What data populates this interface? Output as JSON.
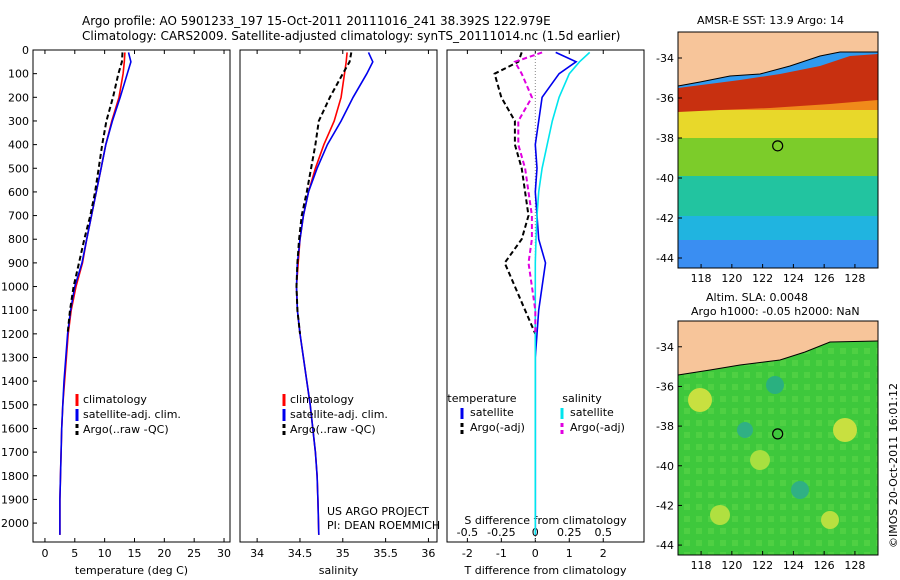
{
  "header": {
    "title_line1": "Argo profile: AO 5901233_197 15-Oct-2011 20111016_241 38.392S 122.979E",
    "title_line2": "Climatology: CARS2009. Satellite-adjusted climatology: synTS_20111014.nc (1.5d earlier)"
  },
  "map_titles": {
    "sst": "AMSR-E SST: 13.9 Argo: 14",
    "sla_line1": "Altim. SLA: 0.0048",
    "sla_line2": "Argo h1000: -0.05 h2000: NaN"
  },
  "watermark": "©IMOS 20-Oct-2011 16:01:12",
  "colors": {
    "climatology": "#ff0000",
    "satellite": "#0000ee",
    "argo": "#000000",
    "salinity_satellite": "#00e5ee",
    "salinity_argo": "#e000e0",
    "land": "#f7c59a"
  },
  "chart_data": [
    {
      "type": "line",
      "id": "temperature",
      "xlabel": "temperature (deg C)",
      "ylabel": "",
      "xlim": [
        -2,
        31
      ],
      "ylim": [
        2080,
        0
      ],
      "xticks": [
        0,
        5,
        10,
        15,
        20,
        25,
        30
      ],
      "yticks": [
        0,
        100,
        200,
        300,
        400,
        500,
        600,
        700,
        800,
        900,
        1000,
        1100,
        1200,
        1300,
        1400,
        1500,
        1600,
        1700,
        1800,
        1900,
        2000
      ],
      "legend": [
        "climatology",
        "satellite-adj. clim.",
        "Argo(..raw -QC)"
      ],
      "series": [
        {
          "name": "climatology",
          "style": "solid",
          "color": "#ff0000",
          "x": [
            13.4,
            13.3,
            13.1,
            12.4,
            11.2,
            10.2,
            9.4,
            8.6,
            7.8,
            7.0,
            6.3,
            5.2,
            4.4,
            3.9,
            3.6,
            3.3,
            3.0,
            2.8,
            2.7,
            2.6,
            2.5,
            2.5
          ],
          "y": [
            10,
            50,
            100,
            200,
            300,
            400,
            500,
            600,
            700,
            800,
            900,
            1000,
            1100,
            1200,
            1300,
            1400,
            1500,
            1600,
            1700,
            1800,
            1900,
            2050
          ]
        },
        {
          "name": "satellite-adj. clim.",
          "style": "solid",
          "color": "#0000ee",
          "x": [
            14.0,
            14.4,
            13.8,
            12.6,
            11.3,
            10.2,
            9.4,
            8.6,
            7.8,
            7.0,
            6.2,
            5.0,
            4.3,
            3.8,
            3.5,
            3.2,
            3.0,
            2.8,
            2.7,
            2.6,
            2.5,
            2.5
          ],
          "y": [
            10,
            50,
            100,
            200,
            300,
            400,
            500,
            600,
            700,
            800,
            900,
            1000,
            1100,
            1200,
            1300,
            1400,
            1500,
            1600,
            1700,
            1800,
            1900,
            2050
          ]
        },
        {
          "name": "Argo(..raw -QC)",
          "style": "dashed",
          "color": "#000000",
          "x": [
            13.0,
            12.9,
            12.3,
            11.4,
            10.3,
            9.6,
            9.0,
            8.4,
            7.6,
            6.6,
            5.7,
            4.8,
            4.2,
            3.8
          ],
          "y": [
            10,
            50,
            100,
            200,
            300,
            400,
            500,
            600,
            700,
            800,
            900,
            1000,
            1100,
            1200
          ]
        }
      ]
    },
    {
      "type": "line",
      "id": "salinity",
      "xlabel": "salinity",
      "ylabel": "",
      "xlim": [
        33.8,
        36.1
      ],
      "ylim": [
        2080,
        0
      ],
      "xticks": [
        34,
        34.5,
        35,
        35.5,
        36
      ],
      "legend": [
        "climatology",
        "satellite-adj. clim.",
        "Argo(..raw -QC)"
      ],
      "annotations": [
        "US ARGO PROJECT",
        "PI: DEAN ROEMMICH"
      ],
      "series": [
        {
          "name": "climatology",
          "style": "solid",
          "color": "#ff0000",
          "x": [
            35.05,
            35.04,
            35.02,
            34.98,
            34.9,
            34.78,
            34.68,
            34.6,
            34.54,
            34.5,
            34.48,
            34.46,
            34.47,
            34.5,
            34.54,
            34.58,
            34.62,
            34.65,
            34.68,
            34.7,
            34.71,
            34.72
          ],
          "y": [
            10,
            50,
            100,
            200,
            300,
            400,
            500,
            600,
            700,
            800,
            900,
            1000,
            1100,
            1200,
            1300,
            1400,
            1500,
            1600,
            1700,
            1800,
            1900,
            2050
          ]
        },
        {
          "name": "satellite-adj. clim.",
          "style": "solid",
          "color": "#0000ee",
          "x": [
            35.3,
            35.35,
            35.28,
            35.12,
            34.98,
            34.82,
            34.7,
            34.6,
            34.54,
            34.5,
            34.47,
            34.46,
            34.47,
            34.5,
            34.54,
            34.58,
            34.62,
            34.65,
            34.68,
            34.7,
            34.71,
            34.72
          ],
          "y": [
            10,
            50,
            100,
            200,
            300,
            400,
            500,
            600,
            700,
            800,
            900,
            1000,
            1100,
            1200,
            1300,
            1400,
            1500,
            1600,
            1700,
            1800,
            1900,
            2050
          ]
        },
        {
          "name": "Argo(..raw -QC)",
          "style": "dashed",
          "color": "#000000",
          "x": [
            35.1,
            35.08,
            35.0,
            34.85,
            34.72,
            34.68,
            34.63,
            34.58,
            34.52,
            34.49,
            34.47,
            34.46,
            34.47,
            34.5
          ],
          "y": [
            10,
            50,
            100,
            200,
            300,
            400,
            500,
            600,
            700,
            800,
            900,
            1000,
            1100,
            1200
          ]
        }
      ]
    },
    {
      "type": "line",
      "id": "difference",
      "xlabel": "T difference from climatology",
      "xlabel_top": "S difference from climatology",
      "ylabel": "",
      "xlim": [
        -2.6,
        3.2
      ],
      "ylim": [
        2080,
        0
      ],
      "xticks": [
        -2,
        -1,
        0,
        1,
        2
      ],
      "xticks_s": [
        "-0.5",
        "-0.25",
        "0",
        "0.25",
        "0.5"
      ],
      "xticks_s_positions": [
        -2,
        -1,
        0,
        1,
        2
      ],
      "legend_groups": {
        "temperature": [
          "satellite",
          "Argo(-adj)"
        ],
        "salinity": [
          "satellite",
          "Argo(-adj)"
        ]
      },
      "series": [
        {
          "name": "temperature satellite",
          "style": "solid",
          "color": "#0000ee",
          "x": [
            0.6,
            1.2,
            0.7,
            0.2,
            0.1,
            0.0,
            0.05,
            0.0,
            0.05,
            0.1,
            0.3,
            0.2,
            0.1,
            0.05,
            0.0,
            0.0,
            0.0,
            0.0,
            0.0,
            0.0,
            0.0
          ],
          "y": [
            10,
            50,
            100,
            200,
            300,
            400,
            500,
            600,
            700,
            800,
            900,
            1000,
            1100,
            1200,
            1300,
            1400,
            1500,
            1600,
            1700,
            1800,
            2050
          ]
        },
        {
          "name": "temperature Argo(-adj)",
          "style": "dashed",
          "color": "#000000",
          "x": [
            -0.4,
            -0.5,
            -1.2,
            -1.0,
            -0.6,
            -0.6,
            -0.4,
            -0.3,
            -0.2,
            -0.4,
            -0.9,
            -0.6,
            -0.3,
            0.0
          ],
          "y": [
            10,
            50,
            100,
            200,
            300,
            400,
            500,
            600,
            700,
            800,
            900,
            1000,
            1100,
            1200
          ]
        },
        {
          "name": "salinity satellite",
          "style": "solid",
          "color": "#00e5ee",
          "x": [
            1.6,
            1.3,
            1.0,
            0.7,
            0.5,
            0.35,
            0.2,
            0.1,
            0.05,
            0.02,
            0.0,
            0.0,
            0.0,
            0.0,
            0.0,
            0.0,
            0.0,
            0.0,
            0.0,
            0.0,
            0.0
          ],
          "y": [
            10,
            50,
            100,
            200,
            300,
            400,
            500,
            600,
            700,
            800,
            900,
            1000,
            1100,
            1200,
            1300,
            1400,
            1500,
            1600,
            1700,
            1800,
            2050
          ]
        },
        {
          "name": "salinity Argo(-adj)",
          "style": "dashed",
          "color": "#e000e0",
          "x": [
            0.2,
            -0.6,
            -0.4,
            -0.1,
            -0.5,
            -0.5,
            -0.3,
            -0.2,
            -0.1,
            -0.1,
            -0.2,
            -0.1,
            0.0,
            0.0
          ],
          "y": [
            10,
            50,
            100,
            200,
            300,
            400,
            500,
            600,
            700,
            800,
            900,
            1000,
            1100,
            1200
          ]
        }
      ]
    },
    {
      "type": "heatmap",
      "id": "sst_map",
      "title": "AMSR-E SST: 13.9 Argo: 14",
      "xlim": [
        116.5,
        129.5
      ],
      "ylim": [
        -44.5,
        -32.7
      ],
      "xticks": [
        118,
        120,
        122,
        124,
        126,
        128
      ],
      "yticks": [
        -34,
        -36,
        -38,
        -40,
        -42,
        -44
      ],
      "argo_position": {
        "lon": 122.979,
        "lat": -38.392
      }
    },
    {
      "type": "heatmap",
      "id": "sla_map",
      "title": "Altim. SLA: 0.0048",
      "xlim": [
        116.5,
        129.5
      ],
      "ylim": [
        -44.5,
        -32.7
      ],
      "xticks": [
        118,
        120,
        122,
        124,
        126,
        128
      ],
      "yticks": [
        -34,
        -36,
        -38,
        -40,
        -42,
        -44
      ],
      "argo_position": {
        "lon": 122.979,
        "lat": -38.392
      }
    }
  ]
}
